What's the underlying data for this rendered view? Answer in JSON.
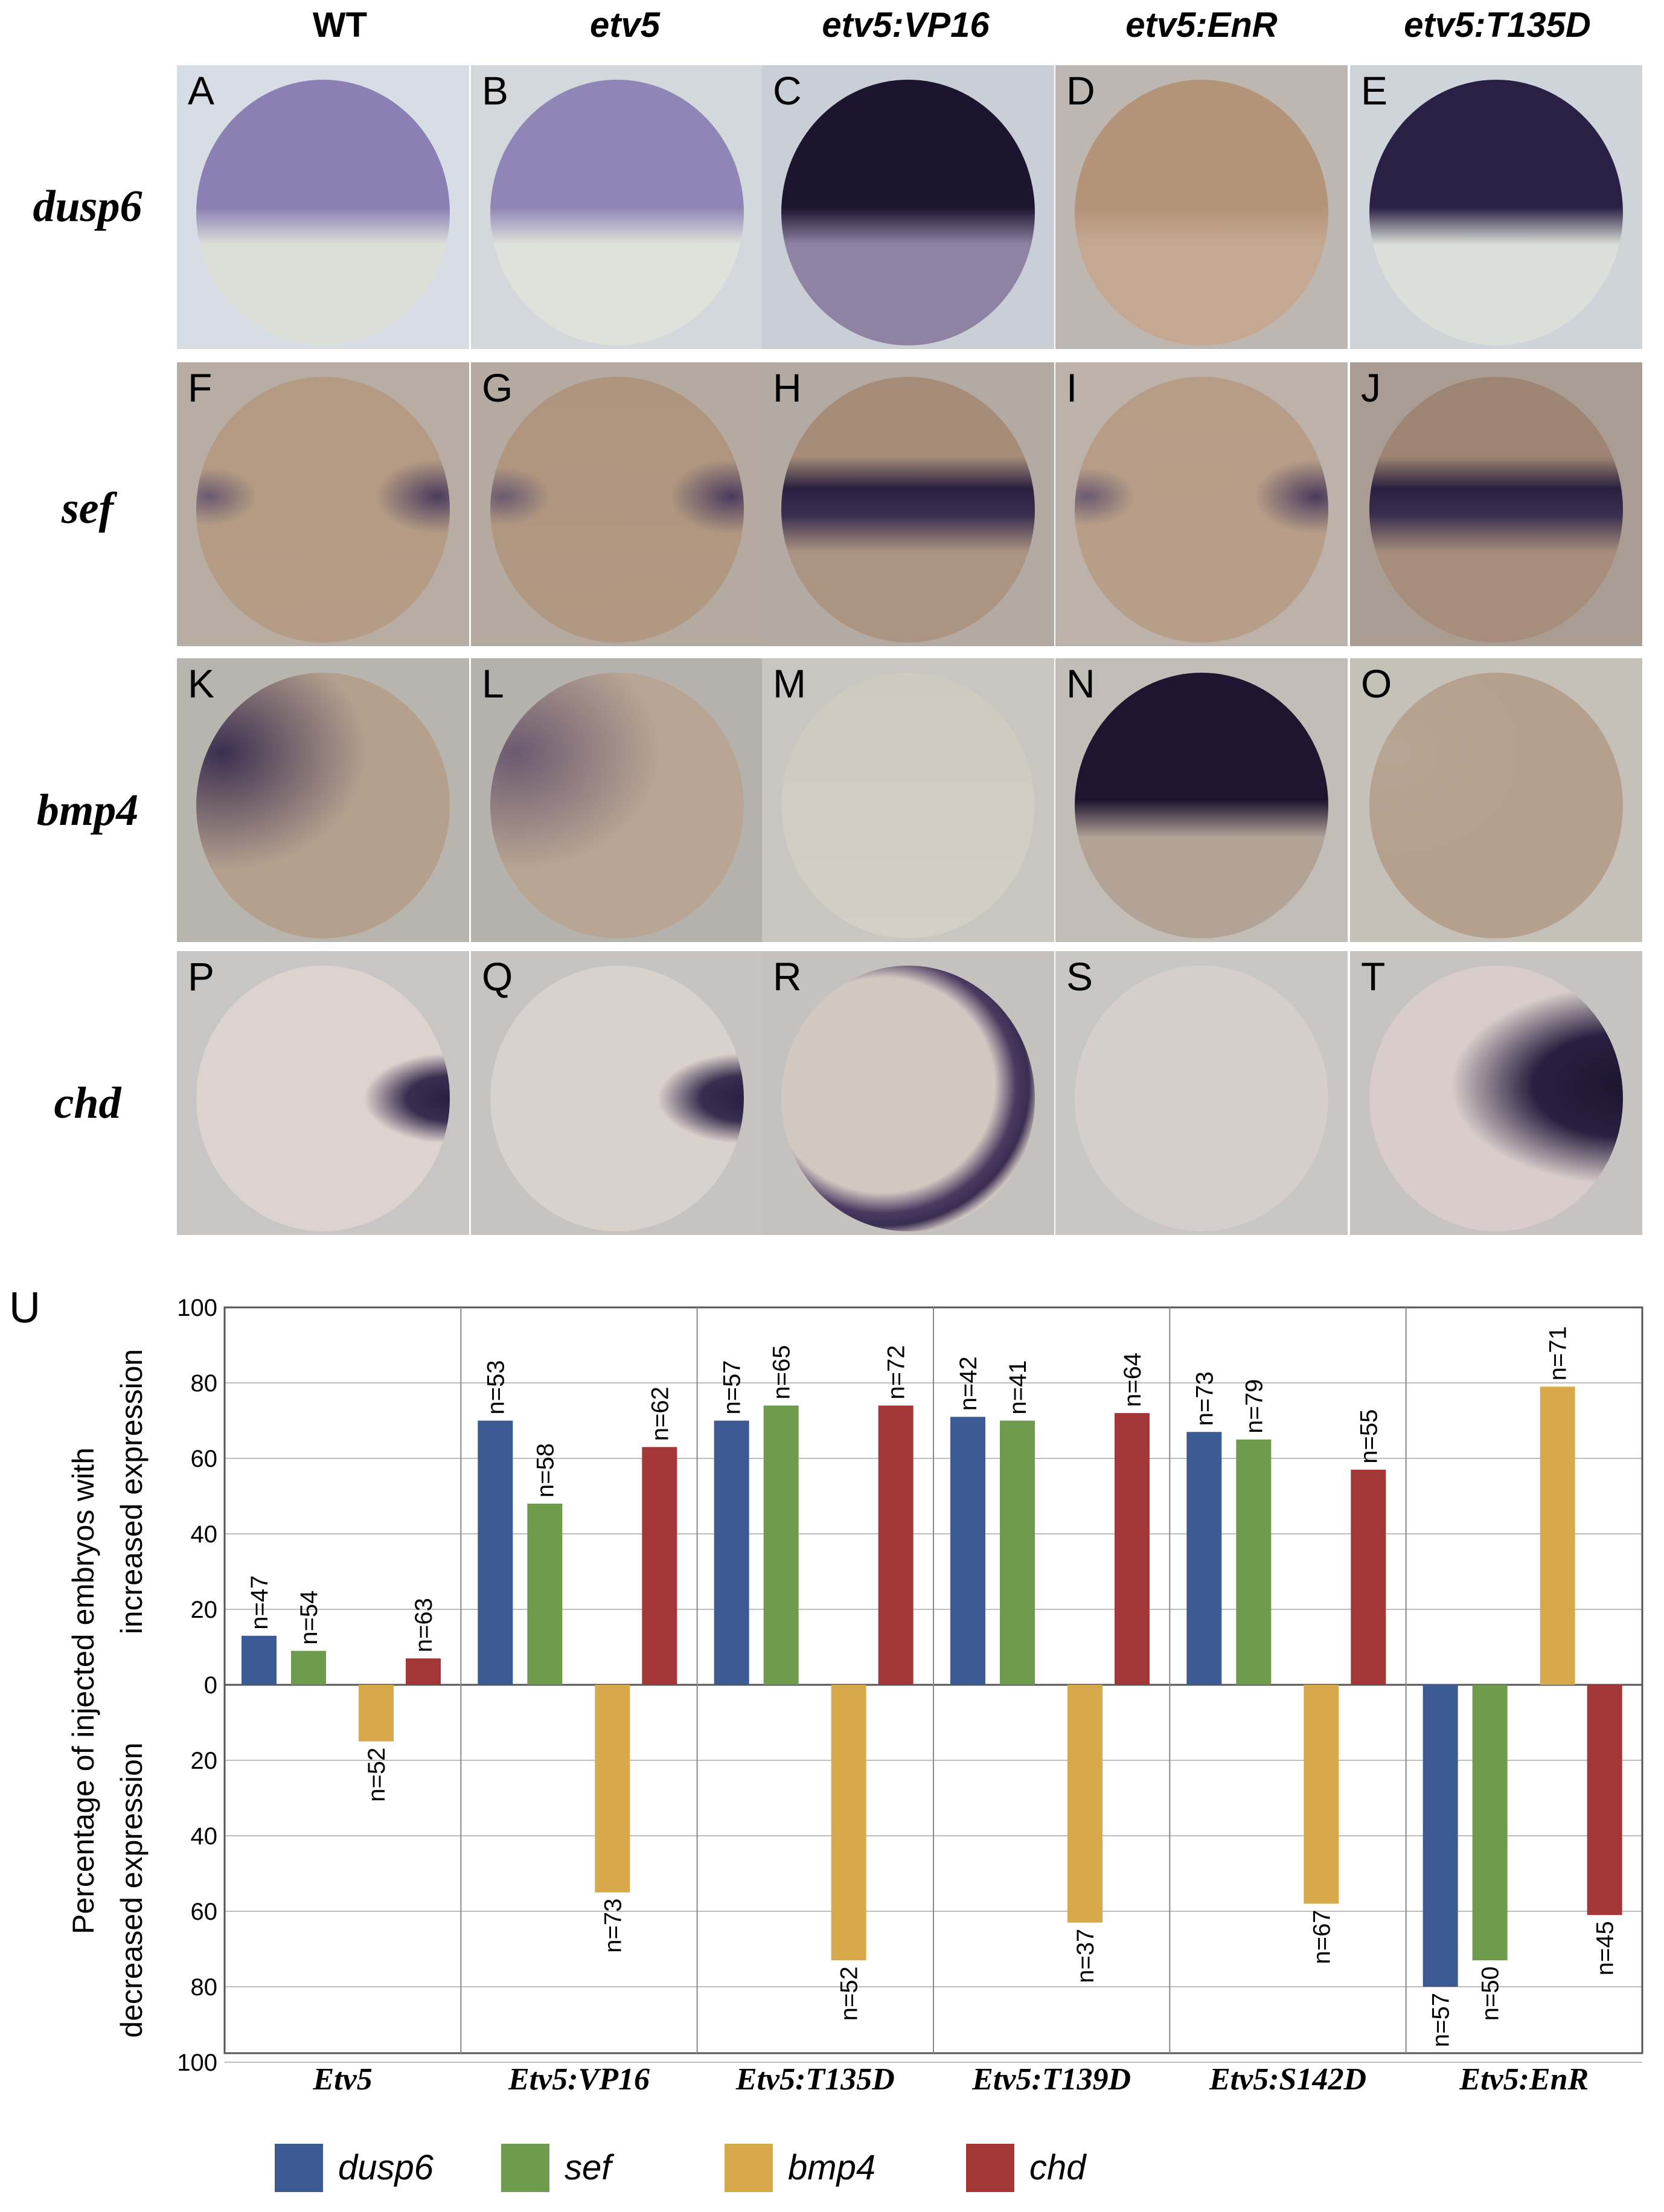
{
  "figure": {
    "columns": [
      "WT",
      "etv5",
      "etv5:VP16",
      "etv5:EnR",
      "etv5:T135D"
    ],
    "rows": [
      "dusp6",
      "sef",
      "bmp4",
      "chd"
    ],
    "panel_labels": [
      "A",
      "B",
      "C",
      "D",
      "E",
      "F",
      "G",
      "H",
      "I",
      "J",
      "K",
      "L",
      "M",
      "N",
      "O",
      "P",
      "Q",
      "R",
      "S",
      "T"
    ],
    "chart_label": "U"
  },
  "chart_data": {
    "type": "bar",
    "categories": [
      "Etv5",
      "Etv5:VP16",
      "Etv5:T135D",
      "Etv5:T139D",
      "Etv5:S142D",
      "Etv5:EnR"
    ],
    "ylabel_lines": [
      "Percentage of injected embryos with",
      "decreased expression",
      "increased expression"
    ],
    "ylim": [
      -100,
      100
    ],
    "yticks": [
      100,
      80,
      60,
      40,
      20,
      0,
      20,
      40,
      60,
      80,
      100
    ],
    "grid": true,
    "legend_position": "bottom",
    "series": [
      {
        "name": "dusp6",
        "color": "#3c5a94",
        "values": [
          13,
          70,
          70,
          71,
          67,
          -80
        ],
        "n": [
          "n=47",
          "n=53",
          "n=57",
          "n=42",
          "n=73",
          "n=57"
        ]
      },
      {
        "name": "sef",
        "color": "#6f9b4d",
        "values": [
          9,
          48,
          74,
          70,
          65,
          -73
        ],
        "n": [
          "n=54",
          "n=58",
          "n=65",
          "n=41",
          "n=79",
          "n=50"
        ]
      },
      {
        "name": "bmp4",
        "color": "#d7a94a",
        "values": [
          -15,
          -55,
          -73,
          -63,
          -58,
          79
        ],
        "n": [
          "n=52",
          "n=73",
          "n=52",
          "n=37",
          "n=67",
          "n=71"
        ]
      },
      {
        "name": "chd",
        "color": "#a33636",
        "values": [
          7,
          63,
          74,
          72,
          57,
          -61
        ],
        "n": [
          "n=63",
          "n=62",
          "n=72",
          "n=64",
          "n=55",
          "n=45"
        ]
      }
    ]
  },
  "panel_styles": [
    {
      "bg": "#d6dde4",
      "top": "#8b7fb4",
      "bottom": "#dcdfd8",
      "mode": "cap",
      "strength": 0.6
    },
    {
      "bg": "#d2d8dc",
      "top": "#8f85b6",
      "bottom": "#dfe2db",
      "mode": "cap",
      "strength": 0.55
    },
    {
      "bg": "#c9cfd6",
      "top": "#1d1430",
      "bottom": "#8f83a4",
      "mode": "cap",
      "strength": 1
    },
    {
      "bg": "#bdb6b1",
      "top": "#b49478",
      "bottom": "#c4a891",
      "mode": "cap",
      "strength": 0.25
    },
    {
      "bg": "#cdd5da",
      "top": "#2a2046",
      "bottom": "#dbdfd9",
      "mode": "cap",
      "strength": 0.95
    },
    {
      "bg": "#b8ada3",
      "top": "#b59a82",
      "bottom": "#b49c86",
      "mode": "ring",
      "strength": 0.35
    },
    {
      "bg": "#b5aaa0",
      "top": "#af957e",
      "bottom": "#b19882",
      "mode": "ring",
      "strength": 0.45
    },
    {
      "bg": "#b3aaa3",
      "top": "#a58d7a",
      "bottom": "#ac9482",
      "mode": "band",
      "strength": 0.9
    },
    {
      "bg": "#bcb2a9",
      "top": "#b79d86",
      "bottom": "#b79e89",
      "mode": "ring",
      "strength": 0.35
    },
    {
      "bg": "#a89c93",
      "top": "#9d8473",
      "bottom": "#a68d7c",
      "mode": "band",
      "strength": 1
    },
    {
      "bg": "#b8b4ae",
      "top": "#3b2f50",
      "bottom": "#b5a08e",
      "mode": "side",
      "strength": 0.8
    },
    {
      "bg": "#b5b2ad",
      "top": "#6b5a70",
      "bottom": "#b9a593",
      "mode": "side",
      "strength": 0.8
    },
    {
      "bg": "#c9c6c1",
      "top": "#cfc9bf",
      "bottom": "#d3cfc7",
      "mode": "none",
      "strength": 0.2
    },
    {
      "bg": "#c2bdb6",
      "top": "#1f1530",
      "bottom": "#b3a397",
      "mode": "cap",
      "strength": 1
    },
    {
      "bg": "#c5c0b8",
      "top": "#b8a492",
      "bottom": "#b59f8d",
      "mode": "side",
      "strength": 0.45
    },
    {
      "bg": "#c8c6c4",
      "top": "#ddd3ce",
      "bottom": "#ddd3ce",
      "mode": "crescent",
      "strength": 0.8
    },
    {
      "bg": "#c6c3c0",
      "top": "#d9d1cb",
      "bottom": "#d9d1cb",
      "mode": "crescent",
      "strength": 0.9
    },
    {
      "bg": "#c4c1be",
      "top": "#d2c8c2",
      "bottom": "#d2c8c2",
      "mode": "ringR",
      "strength": 0.85
    },
    {
      "bg": "#c9c7c4",
      "top": "#d6ceca",
      "bottom": "#d6ceca",
      "mode": "none",
      "strength": 0.15
    },
    {
      "bg": "#c6c3c1",
      "top": "#d8cdca",
      "bottom": "#d8cdca",
      "mode": "crescentBig",
      "strength": 1
    }
  ]
}
